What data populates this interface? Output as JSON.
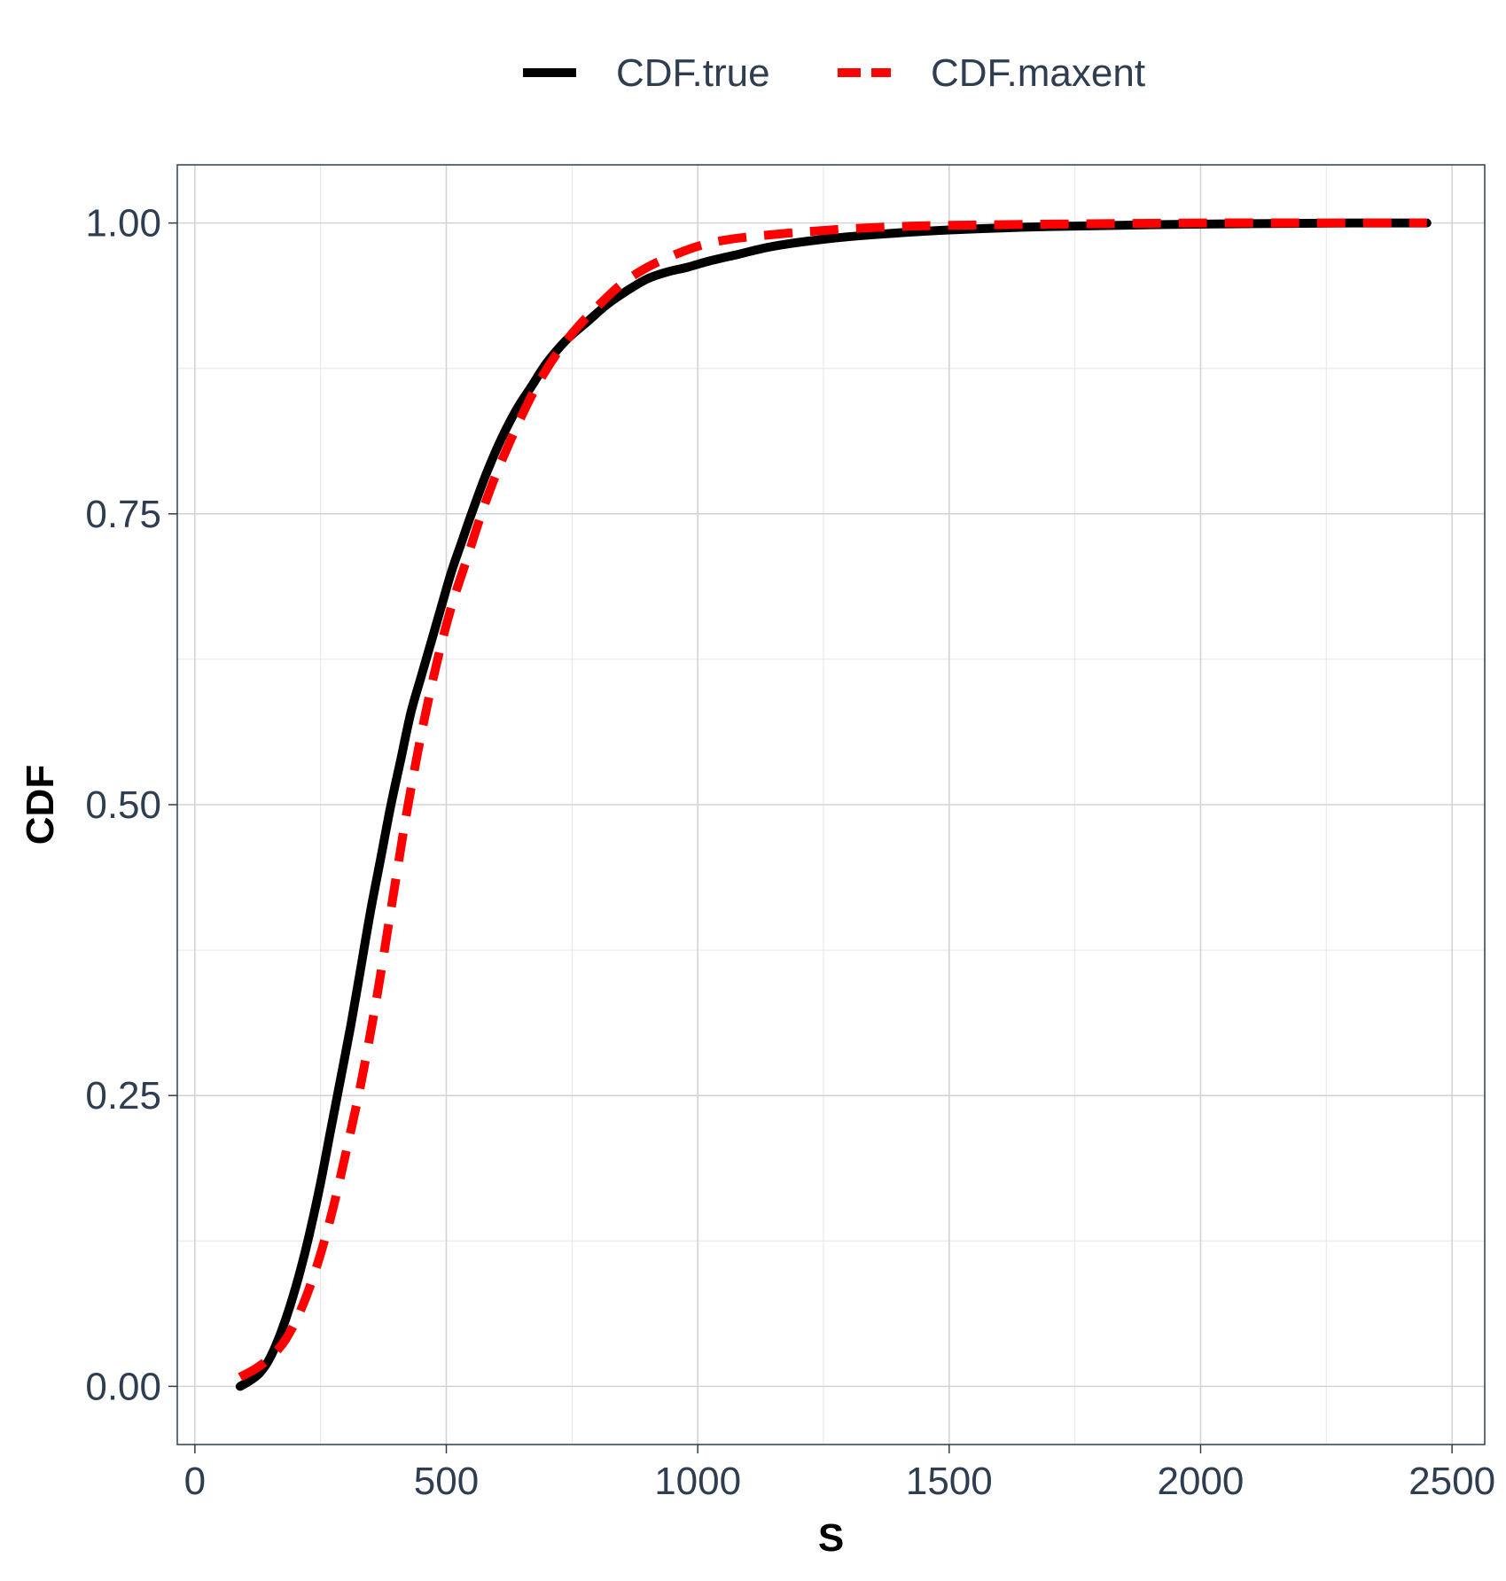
{
  "chart_data": {
    "type": "line",
    "xlabel": "S",
    "ylabel": "CDF",
    "xlim": [
      -35,
      2565
    ],
    "ylim": [
      -0.05,
      1.05
    ],
    "x_ticks": [
      0,
      500,
      1000,
      1500,
      2000,
      2500
    ],
    "x_tick_labels": [
      "0",
      "500",
      "1000",
      "1500",
      "2000",
      "2500"
    ],
    "y_ticks": [
      0,
      0.25,
      0.5,
      0.75,
      1.0
    ],
    "y_tick_labels": [
      "0.00",
      "0.25",
      "0.50",
      "0.75",
      "1.00"
    ],
    "grid": true,
    "legend_position": "top",
    "series": [
      {
        "name": "CDF.true",
        "color": "#000000",
        "dash": "solid",
        "x": [
          90,
          110,
          130,
          150,
          170,
          190,
          210,
          230,
          250,
          270,
          290,
          310,
          330,
          350,
          370,
          390,
          410,
          430,
          450,
          470,
          490,
          510,
          530,
          550,
          580,
          610,
          640,
          670,
          700,
          740,
          780,
          820,
          860,
          900,
          940,
          980,
          1020,
          1080,
          1150,
          1250,
          1350,
          1500,
          1700,
          2000,
          2300,
          2450
        ],
        "y": [
          0.0,
          0.005,
          0.012,
          0.025,
          0.045,
          0.07,
          0.1,
          0.135,
          0.175,
          0.22,
          0.265,
          0.31,
          0.36,
          0.41,
          0.455,
          0.5,
          0.54,
          0.58,
          0.61,
          0.64,
          0.67,
          0.7,
          0.725,
          0.75,
          0.785,
          0.815,
          0.84,
          0.86,
          0.88,
          0.9,
          0.915,
          0.93,
          0.942,
          0.952,
          0.958,
          0.962,
          0.967,
          0.973,
          0.98,
          0.986,
          0.99,
          0.994,
          0.997,
          0.999,
          1.0,
          1.0
        ]
      },
      {
        "name": "CDF.maxent",
        "color": "#ff0000",
        "dash": "dashed",
        "x": [
          90,
          120,
          150,
          180,
          210,
          240,
          270,
          300,
          330,
          360,
          390,
          420,
          450,
          480,
          510,
          540,
          570,
          600,
          640,
          680,
          720,
          760,
          800,
          850,
          900,
          950,
          1000,
          1050,
          1100,
          1200,
          1300,
          1400,
          1500,
          1700,
          2000,
          2300,
          2450
        ],
        "y": [
          0.008,
          0.015,
          0.025,
          0.04,
          0.065,
          0.1,
          0.145,
          0.2,
          0.26,
          0.33,
          0.41,
          0.49,
          0.56,
          0.62,
          0.67,
          0.71,
          0.75,
          0.785,
          0.825,
          0.86,
          0.888,
          0.91,
          0.928,
          0.948,
          0.962,
          0.972,
          0.98,
          0.985,
          0.988,
          0.992,
          0.995,
          0.997,
          0.998,
          0.999,
          1.0,
          1.0,
          1.0
        ]
      }
    ]
  }
}
